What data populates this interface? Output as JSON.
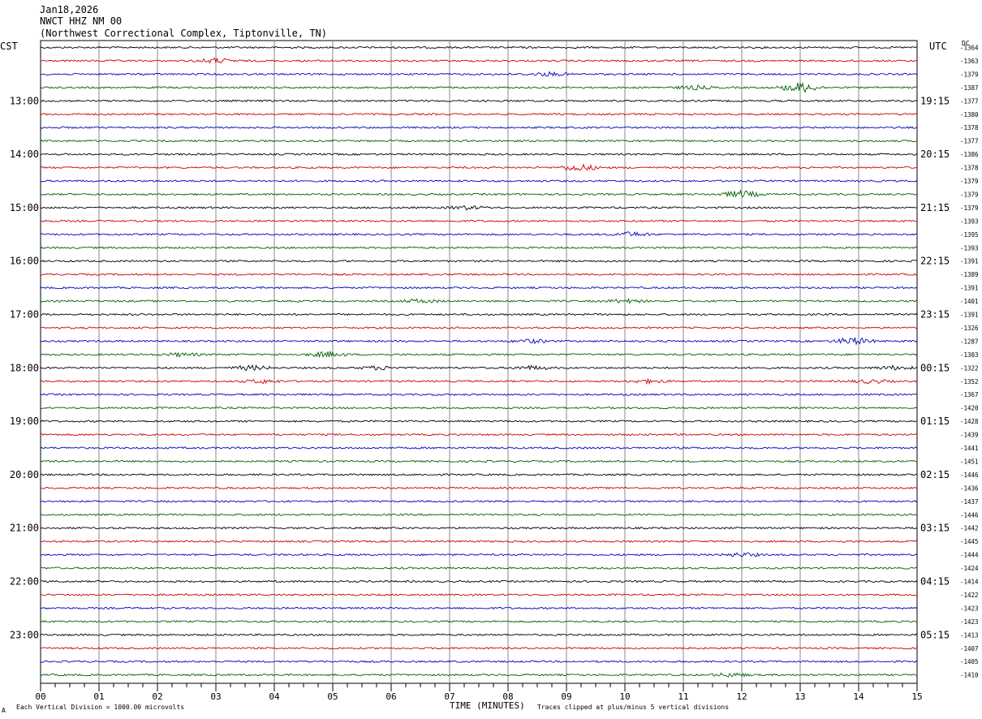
{
  "header": {
    "date": "Jan18,2026",
    "station": "NWCT HHZ NM 00",
    "location": "(Northwest Correctional Complex, Tiptonville, TN)"
  },
  "left_zone": "CST",
  "right_zone": "UTC",
  "dc_label": "DC",
  "footer": {
    "xlabel": "TIME (MINUTES)",
    "scale_note": "Each Vertical Division = 1000.00 microvolts",
    "clip_note": "Traces clipped at plus/minus 5 vertical divisions",
    "mark": "A"
  },
  "colors": {
    "series": [
      "#000000",
      "#d00000",
      "#0000c8",
      "#006000"
    ],
    "grid": "#888888"
  },
  "chart_data": {
    "type": "line",
    "title": "NWCT HHZ NM 00",
    "xlabel": "TIME (MINUTES)",
    "xlim": [
      0,
      15
    ],
    "x_ticks": [
      "00",
      "01",
      "02",
      "03",
      "04",
      "05",
      "06",
      "07",
      "08",
      "09",
      "10",
      "11",
      "12",
      "13",
      "14",
      "15"
    ],
    "left_hour_labels": [
      "13:00",
      "14:00",
      "15:00",
      "16:00",
      "17:00",
      "18:00",
      "19:00",
      "20:00",
      "21:00",
      "22:00",
      "23:00"
    ],
    "right_hour_labels": [
      "19:15",
      "20:15",
      "21:15",
      "22:15",
      "23:15",
      "00:15",
      "01:15",
      "02:15",
      "03:15",
      "04:15",
      "05:15"
    ],
    "dc_offsets": [
      -1364,
      -1363,
      -1379,
      -1387,
      -1377,
      -1380,
      -1378,
      -1377,
      -1386,
      -1378,
      -1379,
      -1379,
      -1379,
      -1393,
      -1395,
      -1393,
      -1391,
      -1389,
      -1391,
      -1401,
      -1391,
      -1326,
      -1287,
      -1303,
      -1322,
      -1352,
      -1367,
      -1420,
      -1428,
      -1439,
      -1441,
      -1451,
      -1446,
      -1436,
      -1437,
      -1446,
      -1442,
      -1445,
      -1444,
      -1424,
      -1414,
      -1422,
      -1423,
      -1423,
      -1413,
      -1407,
      -1405,
      -1410
    ],
    "events": [
      {
        "trace": 1,
        "minute": 3.0,
        "amp": 2.5
      },
      {
        "trace": 2,
        "minute": 8.7,
        "amp": 2
      },
      {
        "trace": 3,
        "minute": 13.0,
        "amp": 6
      },
      {
        "trace": 3,
        "minute": 11.2,
        "amp": 2
      },
      {
        "trace": 9,
        "minute": 9.2,
        "amp": 4
      },
      {
        "trace": 11,
        "minute": 12.0,
        "amp": 4
      },
      {
        "trace": 12,
        "minute": 7.3,
        "amp": 2
      },
      {
        "trace": 14,
        "minute": 10.1,
        "amp": 2.5
      },
      {
        "trace": 19,
        "minute": 6.5,
        "amp": 2
      },
      {
        "trace": 19,
        "minute": 10.0,
        "amp": 2
      },
      {
        "trace": 22,
        "minute": 8.4,
        "amp": 2
      },
      {
        "trace": 22,
        "minute": 13.9,
        "amp": 4
      },
      {
        "trace": 23,
        "minute": 4.9,
        "amp": 3
      },
      {
        "trace": 23,
        "minute": 2.4,
        "amp": 1.8
      },
      {
        "trace": 24,
        "minute": 3.6,
        "amp": 2.5
      },
      {
        "trace": 24,
        "minute": 5.8,
        "amp": 2
      },
      {
        "trace": 24,
        "minute": 8.4,
        "amp": 2
      },
      {
        "trace": 24,
        "minute": 14.6,
        "amp": 2
      },
      {
        "trace": 25,
        "minute": 3.8,
        "amp": 2
      },
      {
        "trace": 25,
        "minute": 10.4,
        "amp": 2
      },
      {
        "trace": 25,
        "minute": 14.2,
        "amp": 2
      },
      {
        "trace": 38,
        "minute": 12.0,
        "amp": 2
      },
      {
        "trace": 47,
        "minute": 11.8,
        "amp": 2
      }
    ]
  }
}
